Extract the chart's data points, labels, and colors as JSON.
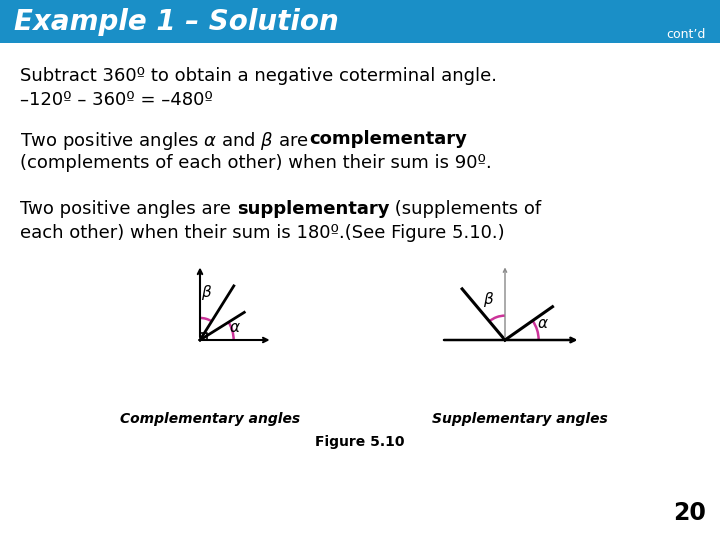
{
  "title": "Example 1 – Solution",
  "contd": "cont’d",
  "header_bg": "#1a8fc7",
  "header_text_color": "#ffffff",
  "body_bg": "#ffffff",
  "body_text_color": "#000000",
  "line1": "Subtract 360º to obtain a negative coterminal angle.",
  "line2": "–120º – 360º = –480º",
  "line4": "(complements of each other) when their sum is 90º.",
  "line6": "each other) when their sum is 180º.(See Figure 5.10.)",
  "fig_caption": "Figure 5.10",
  "page_num": "20",
  "comp_label": "Complementary angles",
  "supp_label": "Supplementary angles",
  "accent_color": "#cc3399"
}
